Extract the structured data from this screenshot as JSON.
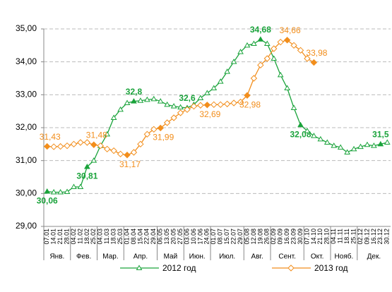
{
  "chart_data": {
    "type": "line",
    "categories": [
      "07.01",
      "14.01",
      "21.01",
      "28.01",
      "04.02",
      "11.02",
      "18.02",
      "25.02",
      "04.03",
      "11.03",
      "18.03",
      "25.03",
      "01.04",
      "08.04",
      "15.04",
      "22.04",
      "29.04",
      "06.05",
      "13.05",
      "20.05",
      "27.05",
      "03.06",
      "10.06",
      "17.06",
      "24.06",
      "01.07",
      "08.07",
      "15.07",
      "22.07",
      "29.07",
      "05.08",
      "12.08",
      "19.08",
      "26.08",
      "02.09",
      "09.09",
      "16.09",
      "23.09",
      "30.09",
      "07.10",
      "14.10",
      "21.10",
      "28.10",
      "04.11",
      "11.11",
      "18.11",
      "25.11",
      "02.12",
      "09.12",
      "16.12",
      "23.12",
      "30.12"
    ],
    "months": [
      "Янв.",
      "Фев.",
      "Мар.",
      "Апр.",
      "Май",
      "Июн.",
      "Июл.",
      "Авг.",
      "Сент.",
      "Окт.",
      "Нояб.",
      "Дек."
    ],
    "series": [
      {
        "name": "2012 год",
        "color": "#1aa33b",
        "values": [
          30.06,
          30.04,
          30.04,
          30.05,
          30.2,
          30.2,
          30.81,
          31.0,
          31.45,
          31.8,
          32.3,
          32.55,
          32.75,
          32.8,
          32.82,
          32.85,
          32.87,
          32.8,
          32.7,
          32.65,
          32.62,
          32.6,
          32.7,
          32.9,
          33.05,
          33.2,
          33.4,
          33.7,
          34.0,
          34.3,
          34.5,
          34.55,
          34.68,
          34.55,
          34.1,
          33.6,
          33.2,
          32.6,
          32.08,
          31.9,
          31.75,
          31.65,
          31.55,
          31.45,
          31.4,
          31.25,
          31.35,
          31.42,
          31.48,
          31.45,
          31.5,
          31.55
        ],
        "value_labels": [
          "30,06",
          null,
          null,
          null,
          null,
          null,
          "30,81",
          null,
          null,
          null,
          null,
          null,
          null,
          "32,8",
          null,
          null,
          null,
          null,
          null,
          null,
          null,
          "32,6",
          null,
          null,
          null,
          null,
          null,
          null,
          null,
          null,
          null,
          null,
          "34,68",
          null,
          null,
          null,
          null,
          null,
          "32,08",
          null,
          null,
          null,
          null,
          null,
          null,
          null,
          null,
          null,
          null,
          null,
          "31,5",
          null
        ]
      },
      {
        "name": "2013 год",
        "color": "#f28e1c",
        "values": [
          31.43,
          31.42,
          31.43,
          31.45,
          31.5,
          31.55,
          31.55,
          31.48,
          31.45,
          31.35,
          31.3,
          31.2,
          31.17,
          31.25,
          31.5,
          31.8,
          31.95,
          31.99,
          32.15,
          32.3,
          32.45,
          32.55,
          32.65,
          32.68,
          32.69,
          32.7,
          32.7,
          32.72,
          32.75,
          32.78,
          32.98,
          33.5,
          33.9,
          34.1,
          34.4,
          34.6,
          34.66,
          34.5,
          34.35,
          34.1,
          33.98,
          null,
          null,
          null,
          null,
          null,
          null,
          null,
          null,
          null,
          null,
          null
        ],
        "value_labels": [
          "31,43",
          null,
          null,
          null,
          null,
          null,
          null,
          "31,48",
          null,
          null,
          null,
          null,
          "31,17",
          null,
          null,
          null,
          null,
          "31,99",
          null,
          null,
          null,
          null,
          null,
          null,
          "32,69",
          null,
          null,
          null,
          null,
          null,
          "32,98",
          null,
          null,
          null,
          null,
          null,
          "34,66",
          null,
          null,
          null,
          "33,98",
          null,
          null,
          null,
          null,
          null,
          null,
          null,
          null,
          null,
          null,
          null
        ]
      }
    ],
    "ylim": [
      29,
      35
    ],
    "yticks": [
      {
        "value": 29,
        "label": "29,00"
      },
      {
        "value": 30,
        "label": "30,00"
      },
      {
        "value": 31,
        "label": "31,00"
      },
      {
        "value": 32,
        "label": "32,00"
      },
      {
        "value": 33,
        "label": "33,00"
      },
      {
        "value": 34,
        "label": "34,00"
      },
      {
        "value": 35,
        "label": "35,00"
      }
    ],
    "grid": true
  }
}
